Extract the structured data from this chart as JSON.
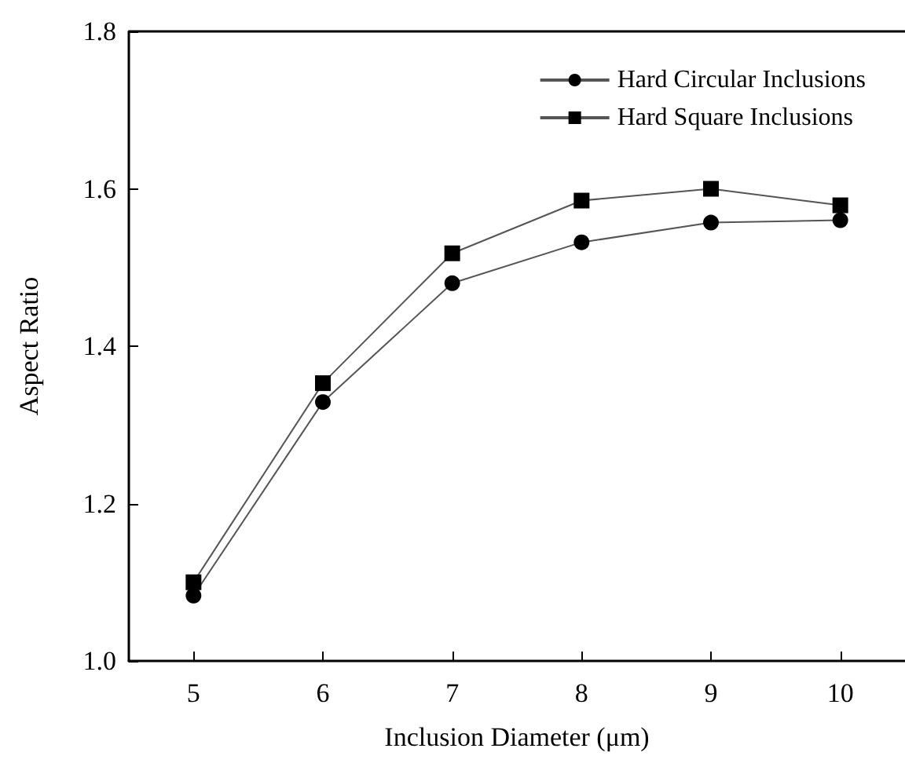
{
  "chart_data": {
    "type": "line",
    "xlabel": "Inclusion Diameter (μm)",
    "ylabel": "Aspect Ratio",
    "x": [
      5,
      6,
      7,
      8,
      9,
      10
    ],
    "series": [
      {
        "name": "Hard Circular Inclusions",
        "color": "#000000",
        "marker": "circle",
        "values": [
          1.083,
          1.329,
          1.48,
          1.532,
          1.557,
          1.56
        ]
      },
      {
        "name": "Hard Square Inclusions",
        "color": "#000000",
        "marker": "square",
        "values": [
          1.1,
          1.353,
          1.518,
          1.585,
          1.6,
          1.579
        ]
      }
    ],
    "xlim": [
      4.5,
      10.5
    ],
    "xticks": [
      5,
      6,
      7,
      8,
      9,
      10
    ],
    "ylim": [
      1.0,
      1.8
    ],
    "yticks": [
      {
        "value": 1.0,
        "label": "1.0"
      },
      {
        "value": 1.2,
        "label": "1.2"
      },
      {
        "value": 1.4,
        "label": "1.4"
      },
      {
        "value": 1.6,
        "label": "1.6"
      },
      {
        "value": 1.8,
        "label": "1.8"
      }
    ],
    "grid": false,
    "legend": "top right"
  }
}
